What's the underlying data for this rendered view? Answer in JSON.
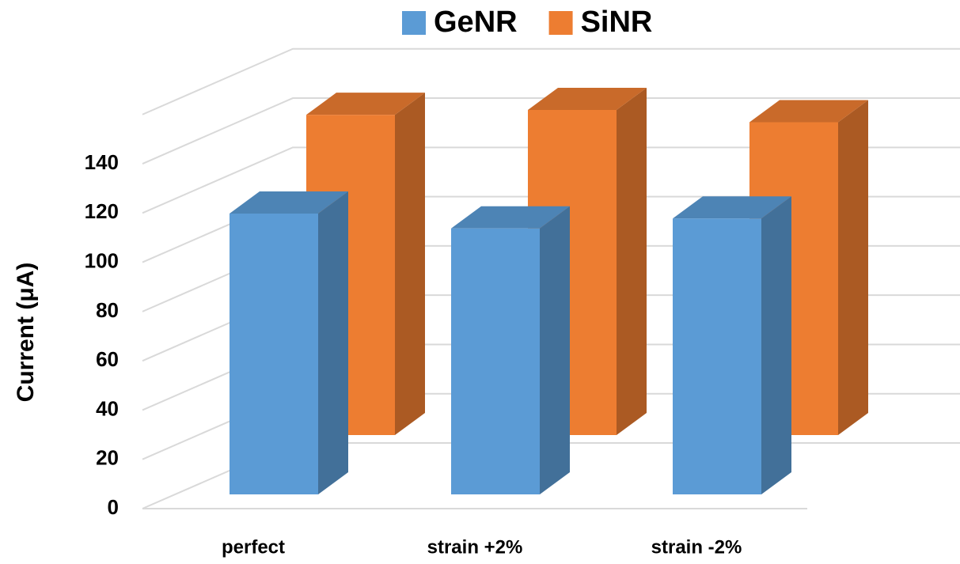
{
  "chart_data": {
    "type": "bar3d",
    "y_label": "Current (μA)",
    "categories": [
      "perfect",
      "strain +2%",
      "strain -2%"
    ],
    "series": [
      {
        "name": "GeNR",
        "color": "#5b9bd5",
        "values": [
          114,
          108,
          112
        ]
      },
      {
        "name": "SiNR",
        "color": "#ed7d31",
        "values": [
          130,
          132,
          127
        ]
      }
    ],
    "ylim": [
      0,
      160
    ],
    "yticks": [
      0,
      20,
      40,
      60,
      80,
      100,
      120,
      140
    ],
    "grid": true,
    "legend": "top"
  }
}
